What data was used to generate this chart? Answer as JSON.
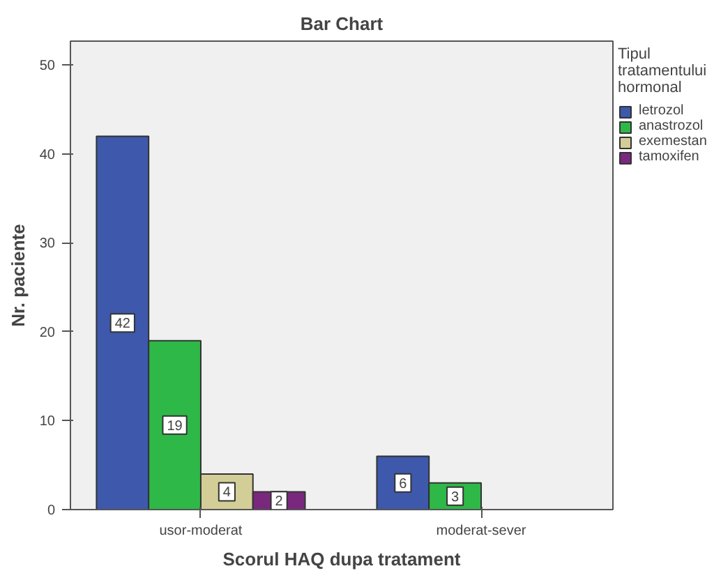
{
  "chart_data": {
    "type": "bar",
    "title": "Bar Chart",
    "xlabel": "Scorul HAQ dupa tratament",
    "ylabel": "Nr. paciente",
    "legend_title": "Tipul tratamentului hormonal",
    "categories": [
      "usor-moderat",
      "moderat-sever"
    ],
    "series": [
      {
        "name": "letrozol",
        "color": "#3e58ac",
        "values": [
          42,
          6
        ]
      },
      {
        "name": "anastrozol",
        "color": "#2eb848",
        "values": [
          19,
          3
        ]
      },
      {
        "name": "exemestan",
        "color": "#d3ce97",
        "values": [
          4,
          null
        ]
      },
      {
        "name": "tamoxifen",
        "color": "#7a287e",
        "values": [
          2,
          null
        ]
      }
    ],
    "ylim": [
      0,
      52.7
    ],
    "yticks": [
      0,
      10,
      20,
      30,
      40,
      50
    ],
    "grid": false,
    "legend": "right",
    "data_labels": true
  }
}
